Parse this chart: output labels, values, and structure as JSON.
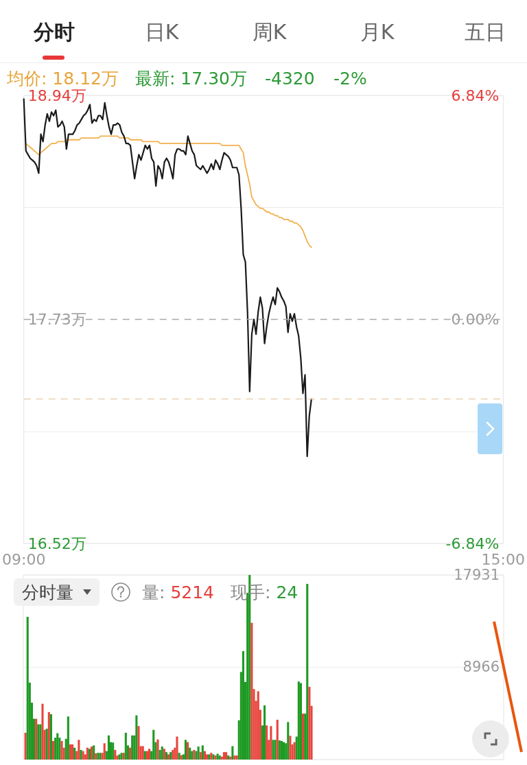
{
  "chart_data": [
    {
      "type": "other",
      "annotations": [
        "分时",
        "日K",
        "周K",
        "月K",
        "五日"
      ]
    },
    {
      "type": "line",
      "annotations": [
        "均价: 18.12万",
        "最新: 17.30万",
        "-4320",
        "-2%"
      ],
      "categories": [
        "09:00",
        null,
        null,
        null,
        null,
        null,
        null,
        null,
        null,
        null,
        null,
        null,
        null,
        null,
        null,
        null,
        null,
        null,
        null,
        null,
        null,
        null,
        null,
        null,
        null,
        null,
        null,
        null,
        null,
        null,
        null,
        null,
        null,
        null,
        null,
        null,
        null,
        null,
        null,
        null,
        null,
        null,
        null,
        null,
        null,
        null,
        null,
        null,
        null,
        null,
        null,
        null,
        null,
        null,
        null,
        null,
        null,
        null,
        null,
        null,
        null,
        null,
        null,
        null,
        null,
        null,
        null,
        null,
        null,
        null,
        null,
        null,
        null,
        null,
        null,
        null,
        null,
        null,
        null,
        null,
        null,
        null,
        null,
        null,
        null,
        null,
        null,
        null,
        null,
        null,
        null,
        null,
        null,
        null,
        null,
        null,
        null,
        null,
        null,
        null,
        null,
        null,
        null,
        null,
        null,
        null,
        null,
        null,
        null,
        null,
        null,
        null,
        null,
        null,
        null,
        null,
        null,
        null,
        null,
        null,
        null,
        null,
        null,
        null,
        null,
        null,
        null,
        null,
        null,
        null,
        null,
        null,
        null,
        null,
        null,
        null,
        null,
        null,
        null,
        null,
        null,
        null,
        null,
        null,
        null,
        null,
        null,
        null,
        null,
        null,
        null,
        null,
        null,
        null,
        null,
        null,
        null,
        null,
        null,
        null,
        null,
        null,
        null,
        null,
        null,
        null,
        null,
        null,
        null,
        null,
        null,
        null,
        null,
        null,
        null,
        null,
        null,
        null,
        null,
        null,
        null,
        null,
        null,
        null,
        null,
        null,
        null,
        null,
        null,
        null,
        null,
        null,
        null,
        null,
        null,
        null,
        null,
        null,
        null,
        null,
        null,
        null,
        null,
        null,
        null,
        null,
        null,
        null,
        null,
        null,
        null,
        null,
        null,
        null,
        null,
        null,
        null,
        null,
        null,
        null,
        null,
        null,
        null,
        null,
        null,
        "15:00"
      ],
      "ylim": [
        16.52,
        18.94
      ],
      "yticks": [
        {
          "value": 16.52,
          "label": "16.52万"
        },
        {
          "value": 17.125,
          "label": null
        },
        {
          "value": 17.73,
          "label": "17.73万"
        },
        {
          "value": 18.335,
          "label": null
        },
        {
          "value": 18.94,
          "label": "18.94万"
        }
      ],
      "y2lim": [
        -6.84,
        6.84
      ],
      "y2ticks": [
        {
          "value": -6.84,
          "label": "-6.84%"
        },
        {
          "value": -3.42,
          "label": null
        },
        {
          "value": 0,
          "label": "0.00%"
        },
        {
          "value": 3.42,
          "label": null
        },
        {
          "value": 6.84,
          "label": "6.84%"
        }
      ],
      "grid": "y",
      "marker": "none",
      "ref_lines": [
        {
          "axis": "y",
          "value": 17.73,
          "color": "#a8a8a8",
          "line_style": "dashed"
        },
        {
          "axis": "y",
          "value": 17.3,
          "color": "#e8d2ae",
          "line_style": "dashed"
        }
      ],
      "series": [
        {
          "color": "#1a1a1a",
          "values": [
            18.92,
            18.64,
            18.62,
            18.6,
            18.59,
            18.58,
            18.56,
            18.52,
            18.73,
            18.69,
            18.78,
            18.84,
            18.8,
            18.85,
            18.83,
            18.86,
            18.77,
            18.78,
            18.8,
            18.77,
            18.65,
            18.73,
            18.73,
            18.73,
            18.75,
            18.78,
            18.79,
            18.81,
            18.83,
            18.84,
            18.86,
            18.89,
            18.79,
            18.81,
            18.8,
            18.83,
            18.83,
            18.81,
            18.9,
            18.83,
            18.77,
            18.73,
            18.78,
            18.78,
            18.79,
            18.78,
            18.74,
            18.72,
            18.68,
            18.68,
            18.67,
            18.58,
            18.49,
            18.56,
            18.62,
            18.59,
            18.63,
            18.67,
            18.65,
            18.67,
            18.6,
            18.58,
            18.45,
            18.56,
            18.54,
            18.49,
            18.58,
            18.6,
            18.58,
            18.54,
            18.49,
            18.62,
            18.65,
            18.65,
            18.64,
            18.64,
            18.62,
            18.72,
            18.68,
            18.64,
            18.62,
            18.56,
            18.55,
            18.54,
            18.56,
            18.54,
            18.52,
            18.54,
            18.57,
            18.54,
            18.59,
            18.57,
            18.54,
            18.59,
            18.63,
            18.62,
            18.61,
            18.59,
            18.55,
            18.55,
            18.55,
            18.51,
            18.33,
            18.08,
            18.04,
            17.77,
            17.34,
            17.65,
            17.73,
            17.65,
            17.77,
            17.85,
            17.79,
            17.6,
            17.69,
            17.76,
            17.81,
            17.85,
            17.81,
            17.9,
            17.88,
            17.85,
            17.83,
            17.8,
            17.66,
            17.76,
            17.72,
            17.76,
            17.69,
            17.64,
            17.52,
            17.33,
            17.43,
            16.99,
            17.21,
            17.3,
            null,
            null,
            null,
            null,
            null,
            null,
            null,
            null,
            null,
            null,
            null,
            null,
            null,
            null,
            null,
            null,
            null,
            null,
            null,
            null,
            null,
            null,
            null,
            null,
            null,
            null,
            null,
            null,
            null,
            null,
            null,
            null,
            null,
            null,
            null,
            null,
            null,
            null,
            null,
            null,
            null,
            null,
            null,
            null,
            null,
            null,
            null,
            null,
            null,
            null,
            null,
            null,
            null,
            null,
            null,
            null,
            null,
            null,
            null,
            null,
            null,
            null,
            null,
            null,
            null,
            null,
            null,
            null,
            null,
            null,
            null,
            null,
            null,
            null,
            null,
            null,
            null,
            null,
            null,
            null,
            null,
            null,
            null,
            null,
            null,
            null,
            null,
            null,
            null,
            null
          ]
        },
        {
          "color": "#f2b04e",
          "values": [
            null,
            18.68,
            18.67,
            18.66,
            18.65,
            18.64,
            18.63,
            18.62,
            18.63,
            18.64,
            18.65,
            18.66,
            18.67,
            18.68,
            18.68,
            18.68,
            18.69,
            18.69,
            18.69,
            18.69,
            18.7,
            18.7,
            18.7,
            18.7,
            18.7,
            18.7,
            18.7,
            18.71,
            18.71,
            18.71,
            18.71,
            18.71,
            18.71,
            18.71,
            18.71,
            18.71,
            18.72,
            18.72,
            18.72,
            18.72,
            18.72,
            18.72,
            18.72,
            18.72,
            18.72,
            18.71,
            18.71,
            18.71,
            18.71,
            18.71,
            18.7,
            18.7,
            18.7,
            18.7,
            18.7,
            18.7,
            18.69,
            18.69,
            18.69,
            18.69,
            18.69,
            18.69,
            18.69,
            18.69,
            18.68,
            18.68,
            18.68,
            18.68,
            18.68,
            18.68,
            18.68,
            18.68,
            18.68,
            18.68,
            18.68,
            18.68,
            18.68,
            18.68,
            18.68,
            18.68,
            18.68,
            18.68,
            18.68,
            18.68,
            18.68,
            18.68,
            18.68,
            18.68,
            18.68,
            18.68,
            18.68,
            18.68,
            18.68,
            18.67,
            18.67,
            18.67,
            18.67,
            18.67,
            18.67,
            18.67,
            18.67,
            18.67,
            18.65,
            18.63,
            18.56,
            18.51,
            18.46,
            18.39,
            18.37,
            18.35,
            18.34,
            18.33,
            18.33,
            18.32,
            18.31,
            18.31,
            18.3,
            18.3,
            18.29,
            18.29,
            18.28,
            18.28,
            18.27,
            18.27,
            18.27,
            18.26,
            18.26,
            18.25,
            18.25,
            18.24,
            18.23,
            18.21,
            18.18,
            18.15,
            18.13,
            18.12,
            null,
            null,
            null,
            null,
            null,
            null,
            null,
            null,
            null,
            null,
            null,
            null,
            null,
            null,
            null,
            null,
            null,
            null,
            null,
            null,
            null,
            null,
            null,
            null,
            null,
            null,
            null,
            null,
            null,
            null,
            null,
            null,
            null,
            null,
            null,
            null,
            null,
            null,
            null,
            null,
            null,
            null,
            null,
            null,
            null,
            null,
            null,
            null,
            null,
            null,
            null,
            null,
            null,
            null,
            null,
            null,
            null,
            null,
            null,
            null,
            null,
            null,
            null,
            null,
            null,
            null,
            null,
            null,
            null,
            null,
            null,
            null,
            null,
            null,
            null,
            null,
            null,
            null,
            null,
            null,
            null,
            null,
            null,
            null,
            null,
            null,
            null,
            null,
            null,
            null
          ]
        }
      ]
    },
    {
      "type": "bar",
      "annotations": [
        "分时量",
        "量: 5214",
        "现手: 24"
      ],
      "categories": [
        null,
        null,
        null,
        null,
        null,
        null,
        null,
        null,
        null,
        null,
        null,
        null,
        null,
        null,
        null,
        null,
        null,
        null,
        null,
        null,
        null,
        null,
        null,
        null,
        null,
        null,
        null,
        null,
        null,
        null,
        null,
        null,
        null,
        null,
        null,
        null,
        null,
        null,
        null,
        null,
        null,
        null,
        null,
        null,
        null,
        null,
        null,
        null,
        null,
        null,
        null,
        null,
        null,
        null,
        null,
        null,
        null,
        null,
        null,
        null,
        null,
        null,
        null,
        null,
        null,
        null,
        null,
        null,
        null,
        null,
        null,
        null,
        null,
        null,
        null,
        null,
        null,
        null,
        null,
        null,
        null,
        null,
        null,
        null,
        null,
        null,
        null,
        null,
        null,
        null,
        null,
        null,
        null,
        null,
        null,
        null,
        null,
        null,
        null,
        null,
        null,
        null,
        null,
        null,
        null,
        null,
        null,
        null,
        null,
        null,
        null,
        null,
        null,
        null,
        null,
        null,
        null,
        null,
        null,
        null,
        null,
        null,
        null,
        null,
        null,
        null,
        null,
        null,
        null,
        null,
        null,
        null,
        null,
        null,
        null,
        null,
        null,
        null,
        null,
        null,
        null,
        null,
        null,
        null,
        null,
        null,
        null,
        null,
        null,
        null,
        null,
        null,
        null,
        null,
        null,
        null,
        null,
        null,
        null,
        null,
        null,
        null,
        null,
        null,
        null,
        null,
        null,
        null,
        null,
        null,
        null,
        null,
        null,
        null,
        null,
        null,
        null,
        null,
        null,
        null,
        null,
        null,
        null,
        null,
        null,
        null,
        null,
        null,
        null,
        null,
        null,
        null,
        null,
        null,
        null,
        null,
        null,
        null,
        null,
        null,
        null,
        null,
        null,
        null,
        null,
        null,
        null,
        null,
        null,
        null,
        null,
        null,
        null,
        null,
        null,
        null,
        null,
        null,
        null,
        null,
        null,
        null,
        null,
        null,
        null,
        null
      ],
      "ylim": [
        0,
        17931
      ],
      "yticks": [
        {
          "value": 0,
          "label": null
        },
        8966,
        17931
      ],
      "grid": "y",
      "tick_labels": "y",
      "values": [
        null,
        2600,
        13860,
        7470,
        5520,
        3960,
        3960,
        3420,
        3420,
        5420,
        2880,
        2990,
        4610,
        4400,
        1800,
        2120,
        2560,
        2120,
        1800,
        1150,
        2010,
        4180,
        1470,
        1470,
        1150,
        820,
        1910,
        930,
        820,
        500,
        1150,
        1040,
        1260,
        1370,
        610,
        650,
        650,
        650,
        1580,
        820,
        2340,
        1690,
        1650,
        930,
        390,
        500,
        650,
        650,
        2600,
        1370,
        1150,
        2340,
        2340,
        4290,
        3250,
        1300,
        1300,
        820,
        820,
        1040,
        820,
        2880,
        1690,
        1950,
        930,
        1260,
        1040,
        720,
        500,
        720,
        930,
        1150,
        2230,
        650,
        430,
        500,
        1910,
        1690,
        1150,
        820,
        930,
        820,
        1260,
        720,
        1370,
        820,
        500,
        500,
        650,
        500,
        390,
        560,
        390,
        280,
        720,
        720,
        390,
        280,
        1300,
        390,
        390,
        3810,
        8510,
        10530,
        7540,
        16200,
        17931,
        13280,
        6850,
        5700,
        6630,
        4830,
        3310,
        5260,
        3310,
        1910,
        3250,
        1910,
        1910,
        3860,
        1860,
        1800,
        1690,
        1580,
        3640,
        2300,
        1470,
        1690,
        2230,
        7580,
        7430,
        4460,
        4460,
        17070,
        7060,
        5214,
        null,
        null,
        null,
        null,
        null,
        null,
        null,
        null,
        null,
        null,
        null,
        null,
        null,
        null,
        null,
        null,
        null,
        null,
        null,
        null,
        null,
        null,
        null,
        null,
        null,
        null,
        null,
        null,
        null,
        null,
        null,
        null,
        null,
        null,
        null,
        null,
        null,
        null,
        null,
        null,
        null,
        null,
        null,
        null,
        null,
        null,
        null,
        null,
        null,
        null,
        null,
        null,
        null,
        null,
        null,
        null,
        null,
        null,
        null,
        null,
        null,
        null,
        null,
        null,
        null,
        null,
        null,
        null,
        null,
        null,
        null,
        null,
        null,
        null,
        null,
        null,
        null,
        null,
        null,
        null,
        null,
        null,
        null,
        null,
        null,
        null,
        null,
        null,
        null,
        null
      ],
      "colors": [
        null,
        "#e8453c",
        "#1f9a24",
        "#1f9a24",
        "#1f9a24",
        "#1f9a24",
        "#e8453c",
        "#1f9a24",
        "#1f9a24",
        "#e8453c",
        "#e8453c",
        "#1f9a24",
        "#e8453c",
        "#1f9a24",
        "#e8453c",
        "#1f9a24",
        "#1f9a24",
        "#1f9a24",
        "#e8453c",
        "#e8453c",
        "#1f9a24",
        "#1f9a24",
        "#e8453c",
        "#e8453c",
        "#1f9a24",
        "#e8453c",
        "#e8453c",
        "#1f9a24",
        "#e8453c",
        "#e8453c",
        "#e8453c",
        "#1f9a24",
        "#e8453c",
        "#1f9a24",
        "#e8453c",
        "#1f9a24",
        "#1f9a24",
        "#e8453c",
        "#e8453c",
        "#1f9a24",
        "#1f9a24",
        "#1f9a24",
        "#1f9a24",
        "#e8453c",
        "#e8453c",
        "#1f9a24",
        "#1f9a24",
        "#e8453c",
        "#1f9a24",
        "#1f9a24",
        "#e8453c",
        "#1f9a24",
        "#1f9a24",
        "#1f9a24",
        "#e8453c",
        "#e8453c",
        "#e8453c",
        "#1f9a24",
        "#e8453c",
        "#e8453c",
        "#1f9a24",
        "#1f9a24",
        "#1f9a24",
        "#e8453c",
        "#1f9a24",
        "#1f9a24",
        "#e8453c",
        "#1f9a24",
        "#e8453c",
        "#1f9a24",
        "#e8453c",
        "#e8453c",
        "#e8453c",
        "#1f9a24",
        "#e8453c",
        "#1f9a24",
        "#1f9a24",
        "#e8453c",
        "#1f9a24",
        "#1f9a24",
        "#e8453c",
        "#1f9a24",
        "#1f9a24",
        "#e8453c",
        "#1f9a24",
        "#e8453c",
        "#e8453c",
        "#1f9a24",
        "#e8453c",
        "#1f9a24",
        "#e8453c",
        "#1f9a24",
        "#1f9a24",
        "#e8453c",
        "#e8453c",
        "#e8453c",
        "#1f9a24",
        "#e8453c",
        "#1f9a24",
        "#e8453c",
        "#e8453c",
        "#1f9a24",
        "#1f9a24",
        "#1f9a24",
        "#1f9a24",
        "#1f9a24",
        "#1f9a24",
        "#e8453c",
        "#e8453c",
        "#e8453c",
        "#e8453c",
        "#e8453c",
        "#1f9a24",
        "#1f9a24",
        "#e8453c",
        "#e8453c",
        "#e8453c",
        "#1f9a24",
        "#1f9a24",
        "#e8453c",
        "#1f9a24",
        "#1f9a24",
        "#1f9a24",
        "#1f9a24",
        "#1f9a24",
        "#e8453c",
        "#e8453c",
        "#e8453c",
        "#1f9a24",
        "#1f9a24",
        "#1f9a24",
        "#e8453c",
        "#1f9a24",
        "#1f9a24",
        "#e8453c",
        "#e8453c",
        null,
        null,
        null,
        null,
        null,
        null,
        null,
        null,
        null,
        null,
        null,
        null,
        null,
        null,
        null,
        null,
        null,
        null,
        null,
        null,
        null,
        null,
        null,
        null,
        null,
        null,
        null,
        null,
        null,
        null,
        null,
        null,
        null,
        null,
        null,
        null,
        null,
        null,
        null,
        null,
        null,
        null,
        null,
        null,
        null,
        null,
        null,
        null,
        null,
        null,
        null,
        null,
        null,
        null,
        null,
        null,
        null,
        null,
        null,
        null,
        null,
        null,
        null,
        null,
        null,
        null,
        null,
        null,
        null,
        null,
        null,
        null,
        null,
        null,
        null,
        null,
        null,
        null,
        null,
        null,
        null,
        null,
        null,
        null,
        null,
        null,
        null,
        null,
        null,
        null
      ]
    }
  ]
}
